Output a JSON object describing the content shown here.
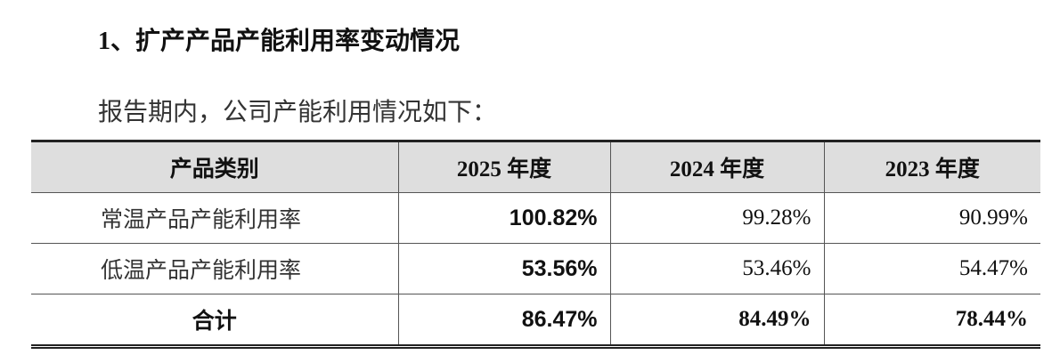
{
  "heading": "1、扩产产品产能利用率变动情况",
  "intro": "报告期内，公司产能利用情况如下：",
  "table": {
    "header": [
      "产品类别",
      "2025 年度",
      "2024 年度",
      "2023 年度"
    ],
    "rows": [
      [
        "常温产品产能利用率",
        "100.82%",
        "99.28%",
        "90.99%"
      ],
      [
        "低温产品产能利用率",
        "53.56%",
        "53.46%",
        "54.47%"
      ],
      [
        "合计",
        "86.47%",
        "84.49%",
        "78.44%"
      ]
    ]
  }
}
